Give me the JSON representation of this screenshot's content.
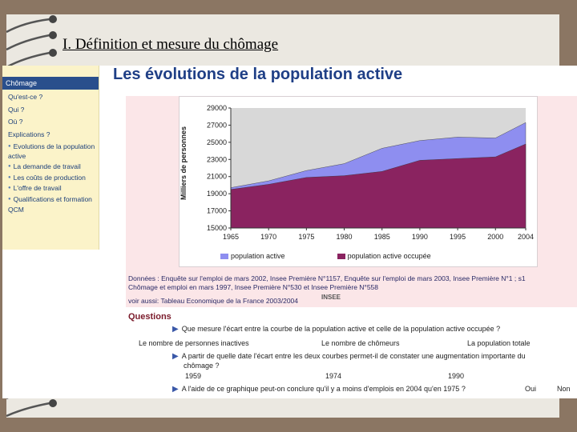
{
  "slide": {
    "title": "I. Définition et mesure du chômage"
  },
  "sidebar": {
    "header": "Chômage",
    "items": [
      {
        "label": "Qu'est-ce ?",
        "sub": false
      },
      {
        "label": "Qui ?",
        "sub": false
      },
      {
        "label": "Où ?",
        "sub": false
      },
      {
        "label": "Explications ?",
        "sub": false
      },
      {
        "label": "Evolutions de la population active",
        "sub": true
      },
      {
        "label": "La demande de travail",
        "sub": true
      },
      {
        "label": "Les coûts de production",
        "sub": true
      },
      {
        "label": "L'offre de travail",
        "sub": true
      },
      {
        "label": "Qualifications et formation",
        "sub": true
      },
      {
        "label": "QCM",
        "sub": false
      }
    ]
  },
  "page": {
    "heading": "Les évolutions de la population active"
  },
  "chart_data": {
    "type": "area",
    "x": [
      1965,
      1970,
      1975,
      1980,
      1985,
      1990,
      1995,
      2000,
      2004
    ],
    "ylabel": "Milliers de personnes",
    "ylim": [
      15000,
      29000
    ],
    "yticks": [
      "29000",
      "27000",
      "25000",
      "23000",
      "21000",
      "19000",
      "17000",
      "15000"
    ],
    "xticks": [
      "1965",
      "1970",
      "1975",
      "1980",
      "1985",
      "1990",
      "1995",
      "2000",
      "2004"
    ],
    "series": [
      {
        "name": "population active",
        "color": "#8e8ef0",
        "values": [
          19700,
          20500,
          21700,
          22500,
          24300,
          25200,
          25600,
          25500,
          27300
        ]
      },
      {
        "name": "population active occupée",
        "color": "#8a2360",
        "values": [
          19500,
          20100,
          20900,
          21100,
          21600,
          22900,
          23100,
          23300,
          24800
        ]
      }
    ],
    "legend": [
      "population active",
      "population active occupée"
    ]
  },
  "sources": {
    "line1": "Données : Enquête sur l'emploi de mars 2002, Insee Première N°1157, Enquête sur l'emploi de mars 2003, Insee Première N°1 ; s1",
    "line2": "Chômage et emploi en mars 1997, Insee Première N°530 et Insee Première N°558",
    "line3": "voir aussi: Tableau Economique de la France 2003/2004",
    "insee": "INSEE"
  },
  "questions": {
    "title": "Questions",
    "q1": "Que mesure l'écart entre la courbe de la population active et celle de la population active occupée ?",
    "q1_options": [
      "Le nombre de personnes inactives",
      "Le nombre de chômeurs",
      "La population totale"
    ],
    "q2_line1": "A partir de quelle date l'écart entre les deux courbes permet-il de constater une augmentation importante du",
    "q2_line2": "chômage ?",
    "q2_options": [
      "1959",
      "1974",
      "1990"
    ],
    "q3": "A l'aide de ce graphique peut-on conclure qu'il y a moins d'emplois en 2004 qu'en 1975 ?",
    "q3_options": [
      "Oui",
      "Non"
    ]
  }
}
